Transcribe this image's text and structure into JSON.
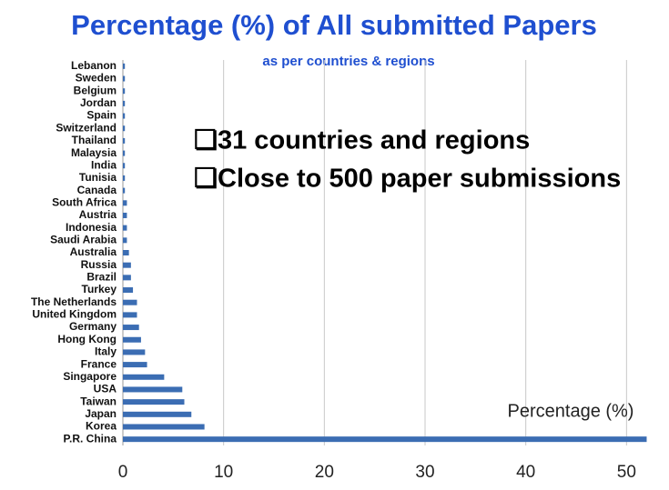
{
  "chart_data": {
    "type": "barh",
    "title": "Percentage (%) of All submitted Papers",
    "subtitle": "as per countries & regions",
    "annotations": [
      "❏31 countries and regions",
      "❏Close to 500 paper submissions"
    ],
    "categories": [
      "Lebanon",
      "Sweden",
      "Belgium",
      "Jordan",
      "Spain",
      "Switzerland",
      "Thailand",
      "Malaysia",
      "India",
      "Tunisia",
      "Canada",
      "South Africa",
      "Austria",
      "Indonesia",
      "Saudi Arabia",
      "Australia",
      "Russia",
      "Brazil",
      "Turkey",
      "The Netherlands",
      "United Kingdom",
      "Germany",
      "Hong Kong",
      "Italy",
      "France",
      "Singapore",
      "USA",
      "Taiwan",
      "Japan",
      "Korea",
      "P.R. China"
    ],
    "series": [
      {
        "name": "Percentage (%)",
        "color": "#3b6db3",
        "values": [
          0.2,
          0.2,
          0.2,
          0.2,
          0.2,
          0.2,
          0.2,
          0.2,
          0.2,
          0.2,
          0.2,
          0.4,
          0.4,
          0.4,
          0.4,
          0.6,
          0.8,
          0.8,
          1.0,
          1.4,
          1.4,
          1.6,
          1.8,
          2.2,
          2.4,
          4.1,
          5.9,
          6.1,
          6.8,
          8.1,
          52
        ]
      }
    ],
    "xlim": [
      0,
      52.5
    ],
    "xticks": [
      0,
      10,
      20,
      30,
      40,
      50
    ],
    "grid": true
  }
}
